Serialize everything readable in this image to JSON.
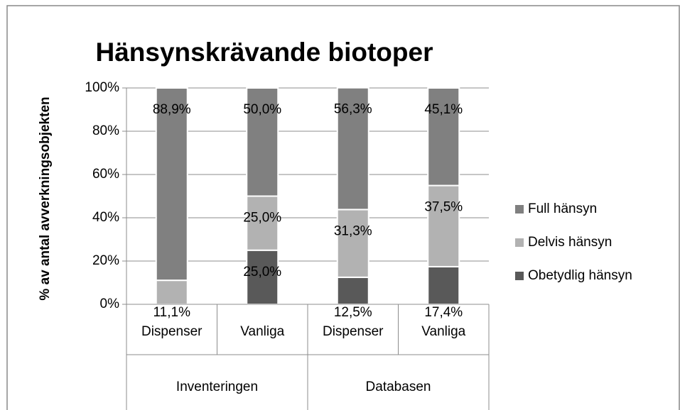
{
  "chart_data": {
    "type": "stacked_bar",
    "title": "Hänsynskrävande biotoper",
    "y_label": "% av antal avverkningsobjekten",
    "categories": [
      "Dispenser",
      "Vanliga",
      "Dispenser",
      "Vanliga"
    ],
    "groups": [
      "Inventeringen",
      "Databasen"
    ],
    "series": [
      {
        "name": "Obetydlig hänsyn",
        "color": "#595959",
        "values": [
          null,
          25.0,
          12.5,
          17.4
        ],
        "value_labels": [
          null,
          "25,0%",
          "12,5%",
          "17,4%"
        ]
      },
      {
        "name": "Delvis hänsyn",
        "color": "#b2b2b2",
        "values": [
          11.1,
          25.0,
          31.3,
          37.5
        ],
        "value_labels": [
          "11,1%",
          "25,0%",
          "31,3%",
          "37,5%"
        ]
      },
      {
        "name": "Full hänsyn",
        "color": "#808080",
        "values": [
          88.9,
          50.0,
          56.3,
          45.1
        ],
        "value_labels": [
          "88,9%",
          "50,0%",
          "56,3%",
          "45,1%"
        ]
      }
    ],
    "ylim": [
      0,
      100
    ],
    "yticks": [
      {
        "value": 0,
        "label": "0%"
      },
      {
        "value": 20,
        "label": "20%"
      },
      {
        "value": 40,
        "label": "40%"
      },
      {
        "value": 60,
        "label": "60%"
      },
      {
        "value": 80,
        "label": "80%"
      },
      {
        "value": 100,
        "label": "100%"
      }
    ],
    "grid": true,
    "legend": "right"
  }
}
